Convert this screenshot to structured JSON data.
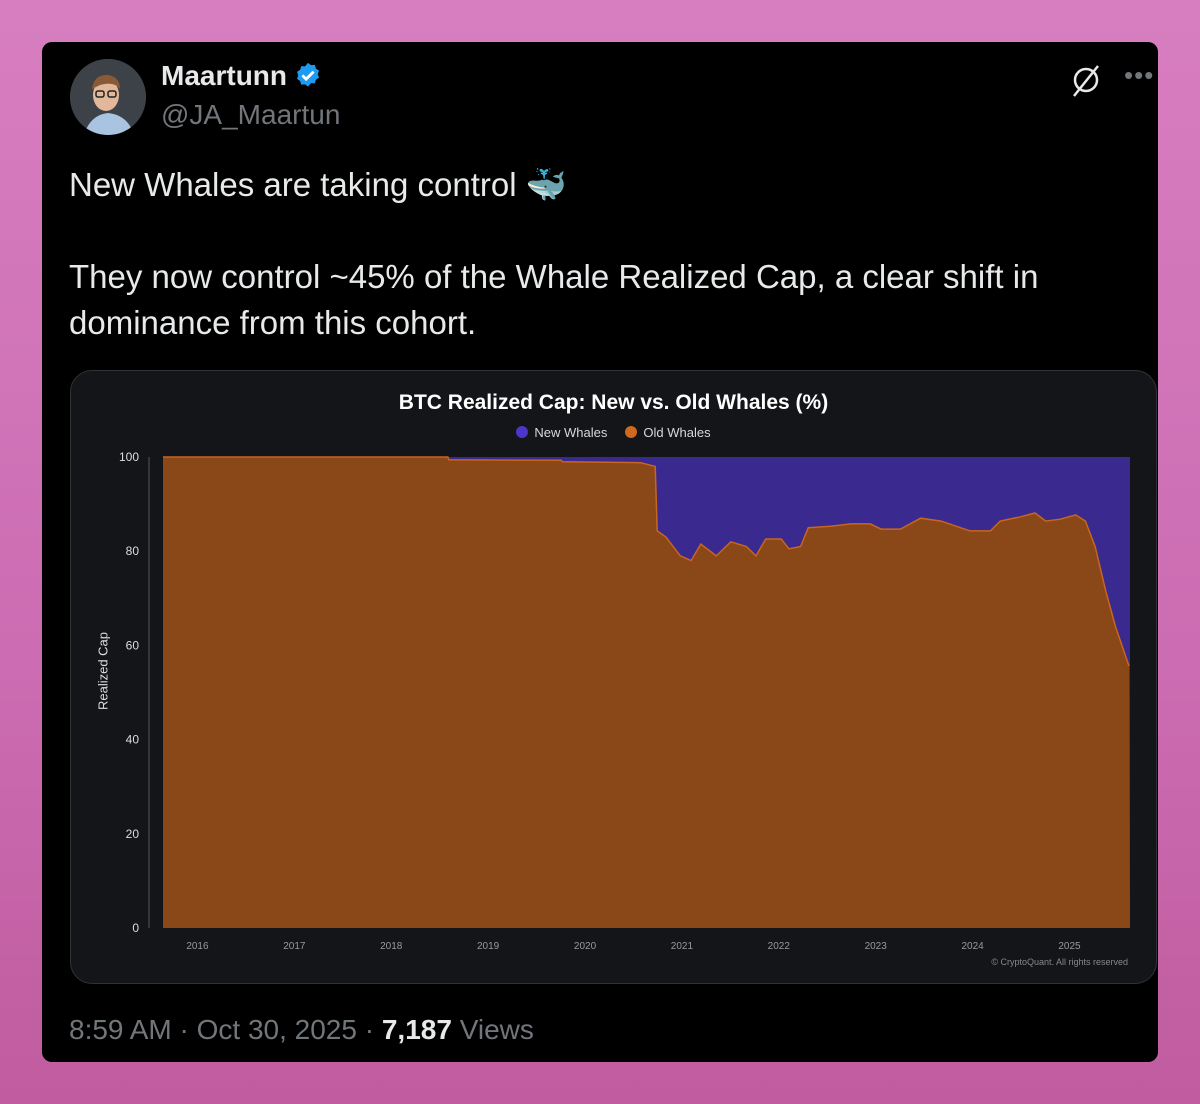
{
  "tweet": {
    "author_name": "Maartunn",
    "handle": "@JA_Maartun",
    "verified": true,
    "icons": [
      "verified-badge-icon",
      "grok-icon",
      "more-icon"
    ],
    "line1": "New Whales are taking control 🐳",
    "line2": "They now control ~45% of the Whale Realized Cap, a clear shift in",
    "line3": "dominance from this cohort.",
    "time": "8:59 AM",
    "date": "Oct 30, 2025",
    "separator": "·",
    "views_count": "7,187",
    "views_label": "Views"
  },
  "colors": {
    "new_whales": "#3a2a8f",
    "old_whales": "#8a4718",
    "verified": "#1d9bf0"
  },
  "chart_data": {
    "type": "area",
    "stacked": true,
    "title": "BTC Realized Cap: New vs. Old Whales (%)",
    "ylabel": "Realized Cap",
    "xlabel": "",
    "ylim": [
      0,
      100
    ],
    "xlim": [
      2015.82,
      2025.8
    ],
    "yticks": [
      "0",
      "20",
      "40",
      "60",
      "80",
      "100"
    ],
    "xticks": [
      "2016",
      "2017",
      "2018",
      "2019",
      "2020",
      "2021",
      "2022",
      "2023",
      "2024",
      "2025"
    ],
    "legend": "top-center",
    "grid": false,
    "watermark": "© CryptoQuant. All rights reserved",
    "series_names": [
      "New Whales",
      "Old Whales"
    ],
    "old_whales": [
      [
        2015.82,
        100
      ],
      [
        2018.76,
        100
      ],
      [
        2018.77,
        99.4
      ],
      [
        2019.93,
        99.3
      ],
      [
        2019.94,
        99
      ],
      [
        2020.75,
        98.8
      ],
      [
        2020.9,
        98
      ],
      [
        2020.92,
        84.3
      ],
      [
        2021.01,
        83
      ],
      [
        2021.16,
        79
      ],
      [
        2021.27,
        78
      ],
      [
        2021.37,
        81.5
      ],
      [
        2021.53,
        79
      ],
      [
        2021.68,
        82
      ],
      [
        2021.84,
        81
      ],
      [
        2021.94,
        79
      ],
      [
        2022.04,
        82.6
      ],
      [
        2022.2,
        82.6
      ],
      [
        2022.28,
        80.5
      ],
      [
        2022.4,
        81
      ],
      [
        2022.48,
        85
      ],
      [
        2022.71,
        85.3
      ],
      [
        2022.92,
        85.8
      ],
      [
        2023.12,
        85.8
      ],
      [
        2023.23,
        84.7
      ],
      [
        2023.43,
        84.7
      ],
      [
        2023.64,
        87
      ],
      [
        2023.85,
        86.4
      ],
      [
        2024.05,
        85
      ],
      [
        2024.15,
        84.3
      ],
      [
        2024.36,
        84.3
      ],
      [
        2024.46,
        86.4
      ],
      [
        2024.67,
        87.3
      ],
      [
        2024.82,
        88.1
      ],
      [
        2024.93,
        86.4
      ],
      [
        2025.08,
        86.8
      ],
      [
        2025.24,
        87.7
      ],
      [
        2025.34,
        86.4
      ],
      [
        2025.44,
        81
      ],
      [
        2025.55,
        71.5
      ],
      [
        2025.65,
        64
      ],
      [
        2025.79,
        55.6
      ]
    ]
  }
}
